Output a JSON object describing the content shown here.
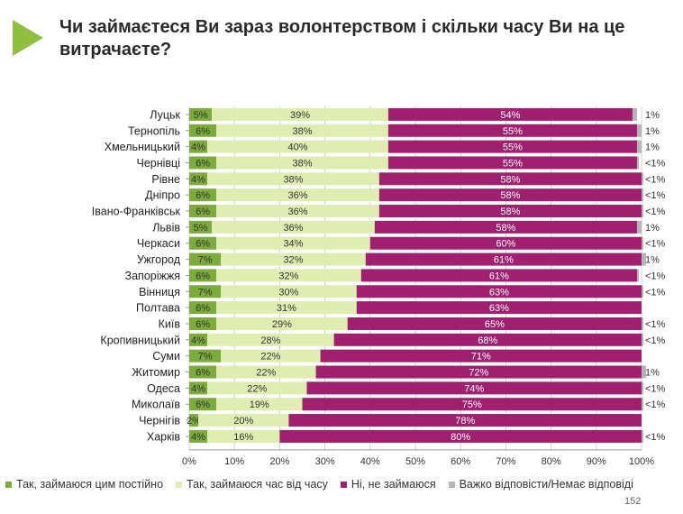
{
  "title": "Чи займаєтеся Ви зараз волонтерством і скільки часу Ви на це витрачаєте?",
  "page_number": "152",
  "colors": {
    "arrow": "#8fbf3f",
    "series": [
      "#7bab3a",
      "#dfeeb0",
      "#a01f6e",
      "#b5b5b5"
    ],
    "grid": "#c8c8c8",
    "axis": "#999999"
  },
  "chart_data": {
    "type": "bar",
    "orientation": "horizontal",
    "stacked": true,
    "xlim": [
      0,
      100
    ],
    "x_ticks": [
      "0%",
      "10%",
      "20%",
      "30%",
      "40%",
      "50%",
      "60%",
      "70%",
      "80%",
      "90%",
      "100%"
    ],
    "grid": true,
    "legend_position": "bottom",
    "categories": [
      "Луцьк",
      "Тернопіль",
      "Хмельницький",
      "Чернівці",
      "Рівне",
      "Дніпро",
      "Івано-Франківськ",
      "Львів",
      "Черкаси",
      "Ужгород",
      "Запоріжжя",
      "Вінниця",
      "Полтава",
      "Київ",
      "Кропивницький",
      "Суми",
      "Житомир",
      "Одеса",
      "Миколаїв",
      "Чернігів",
      "Харків"
    ],
    "series": [
      {
        "name": "Так, займаюся цим постійно",
        "values": [
          5,
          6,
          4,
          6,
          4,
          6,
          6,
          5,
          6,
          7,
          6,
          7,
          6,
          6,
          4,
          7,
          6,
          4,
          6,
          2,
          4
        ]
      },
      {
        "name": "Так, займаюся час від часу",
        "values": [
          39,
          38,
          40,
          38,
          38,
          36,
          36,
          36,
          34,
          32,
          32,
          30,
          31,
          29,
          28,
          22,
          22,
          22,
          19,
          20,
          16
        ]
      },
      {
        "name": "Ні, не займаюся",
        "values": [
          54,
          55,
          55,
          55,
          58,
          58,
          58,
          58,
          60,
          61,
          61,
          63,
          63,
          65,
          68,
          71,
          72,
          74,
          75,
          78,
          80
        ]
      },
      {
        "name": "Важко відповісти/Немає відповіді",
        "values": [
          1,
          1,
          1,
          0.4,
          0.4,
          0.4,
          0.4,
          1,
          0.4,
          1,
          0.4,
          0.4,
          0,
          0.4,
          0.4,
          0,
          1,
          0.4,
          0.4,
          0,
          0.4
        ]
      }
    ],
    "value_labels": [
      [
        "5%",
        "6%",
        "4%",
        "6%",
        "4%",
        "6%",
        "6%",
        "5%",
        "6%",
        "7%",
        "6%",
        "7%",
        "6%",
        "6%",
        "4%",
        "7%",
        "6%",
        "4%",
        "6%",
        "2%",
        "4%"
      ],
      [
        "39%",
        "38%",
        "40%",
        "38%",
        "38%",
        "36%",
        "36%",
        "36%",
        "34%",
        "32%",
        "32%",
        "30%",
        "31%",
        "29%",
        "28%",
        "22%",
        "22%",
        "22%",
        "19%",
        "20%",
        "16%"
      ],
      [
        "54%",
        "55%",
        "55%",
        "55%",
        "58%",
        "58%",
        "58%",
        "58%",
        "60%",
        "61%",
        "61%",
        "63%",
        "63%",
        "65%",
        "68%",
        "71%",
        "72%",
        "74%",
        "75%",
        "78%",
        "80%"
      ],
      [
        "1%",
        "1%",
        "1%",
        "<1%",
        "<1%",
        "<1%",
        "<1%",
        "1%",
        "<1%",
        "1%",
        "<1%",
        "<1%",
        "",
        "<1%",
        "<1%",
        "",
        "1%",
        "<1%",
        "<1%",
        "",
        "<1%"
      ]
    ]
  }
}
